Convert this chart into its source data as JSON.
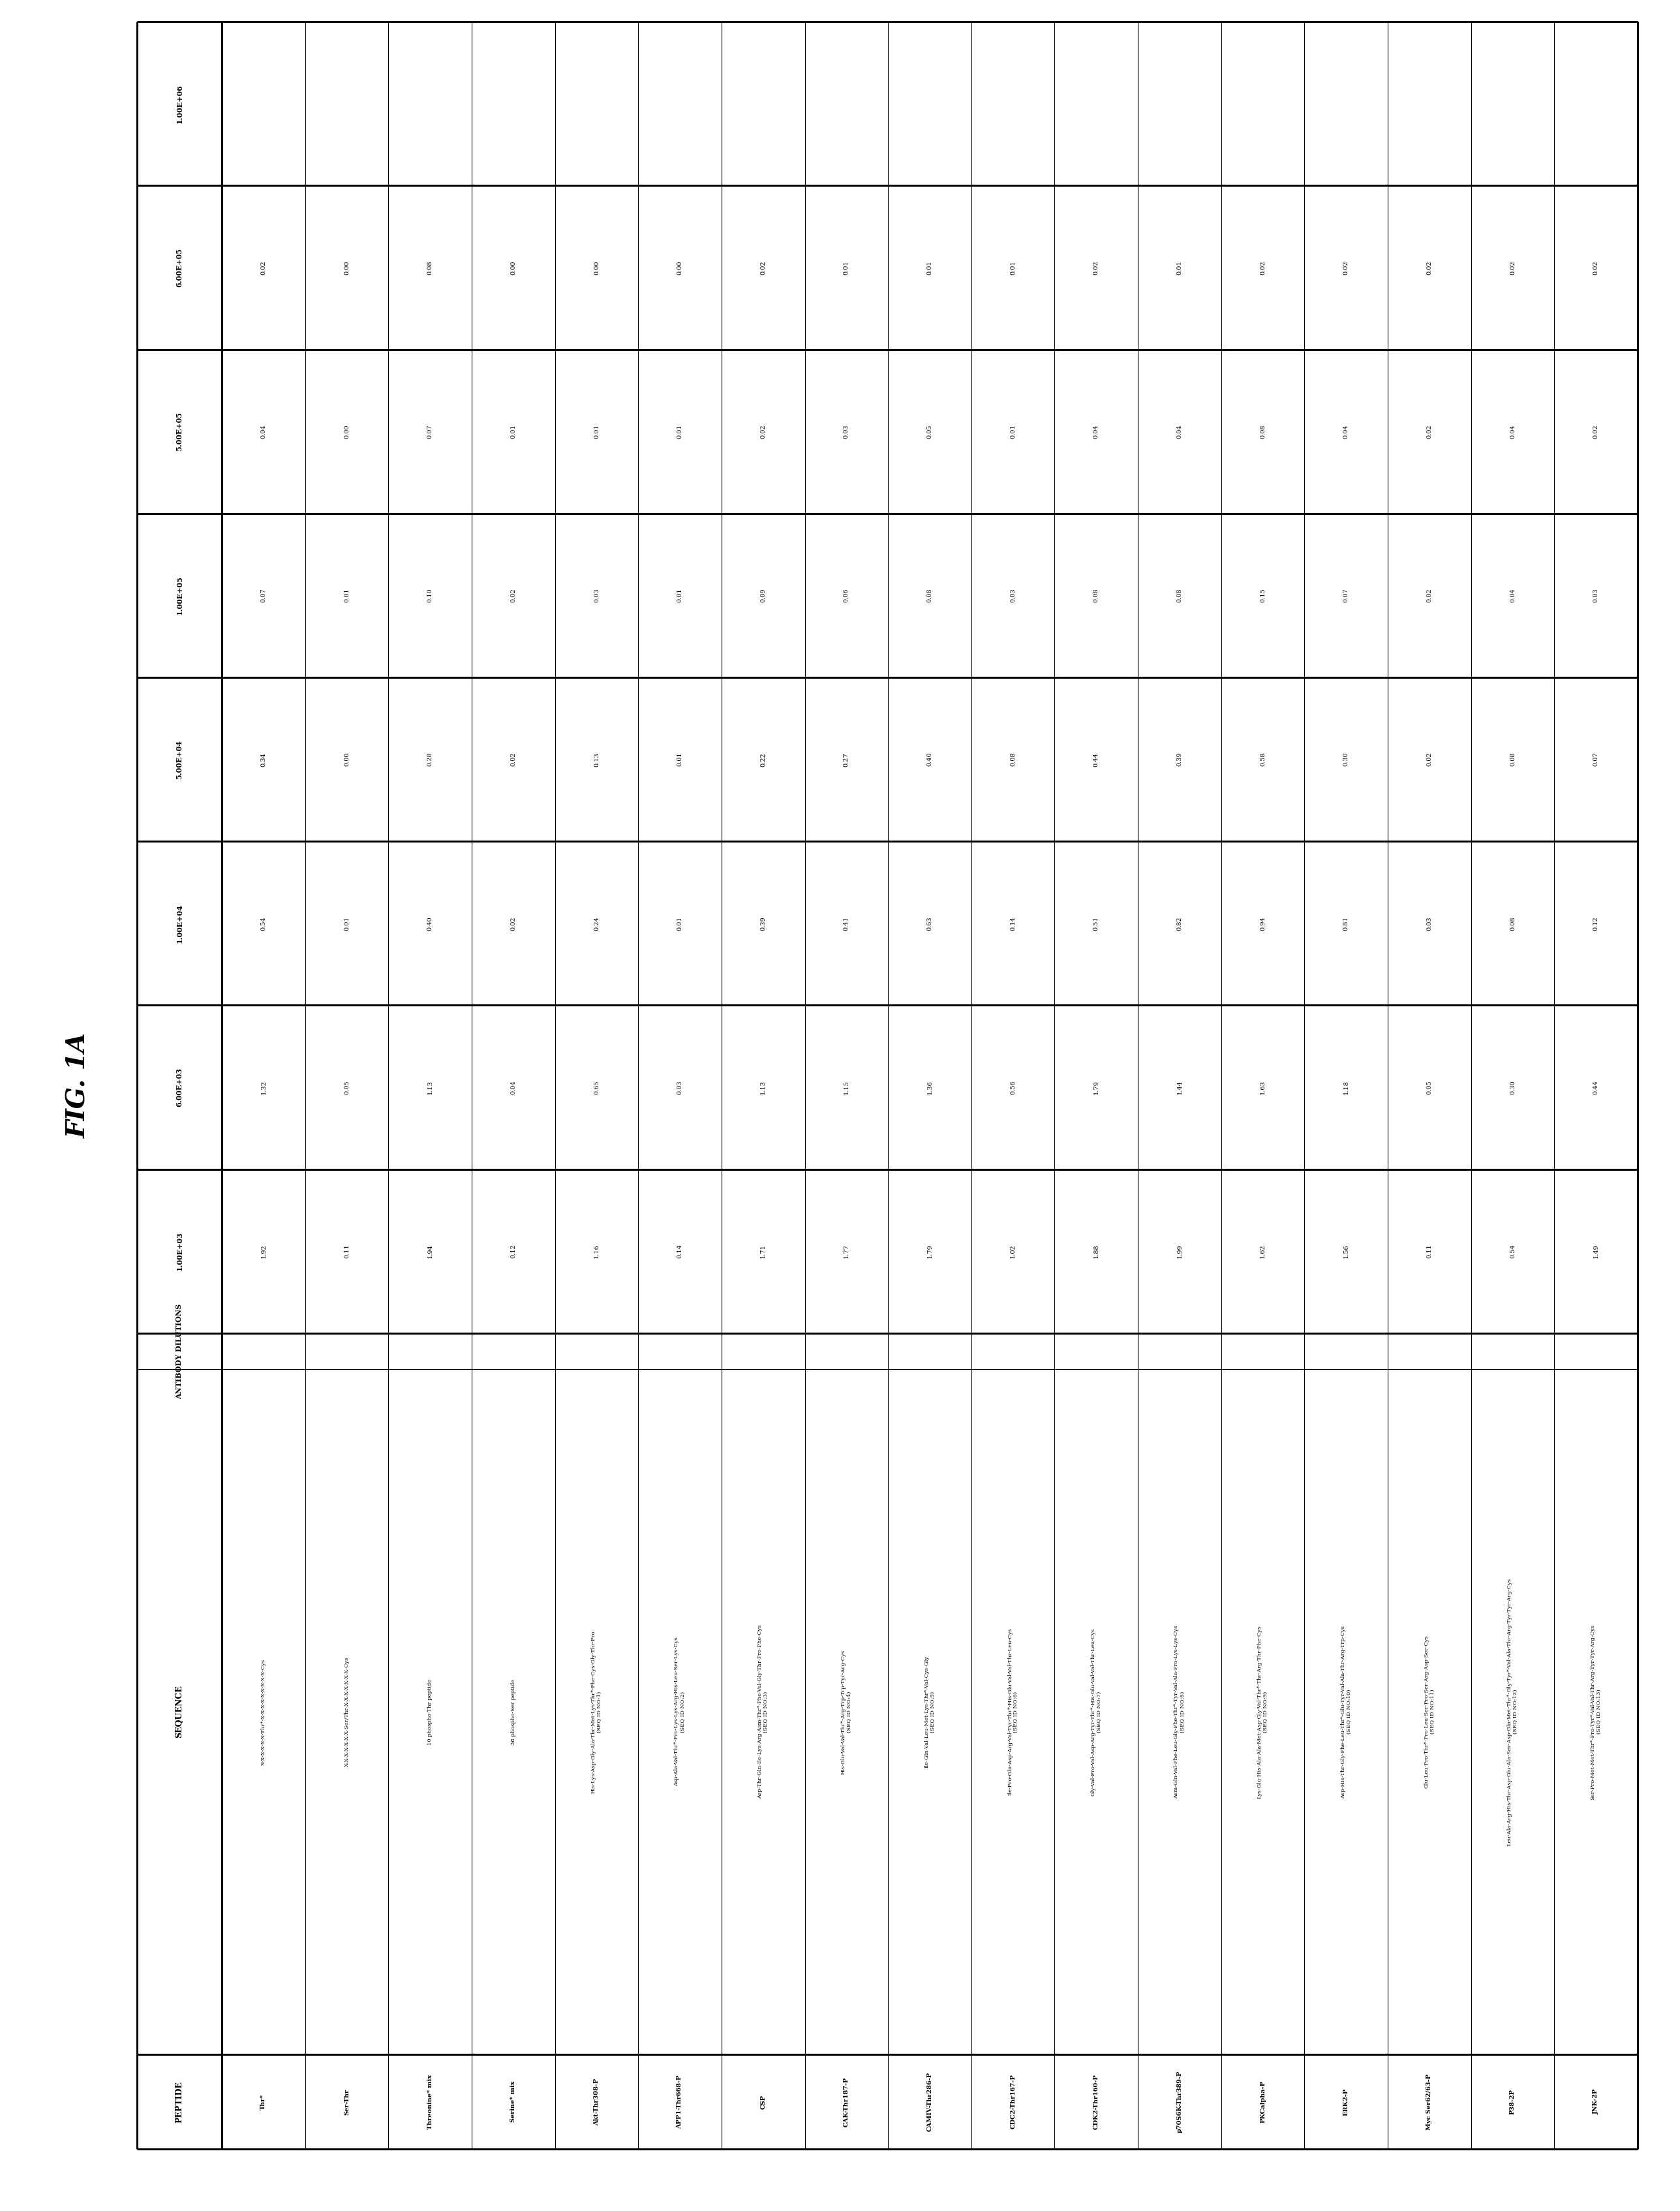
{
  "title": "FIG. 1A",
  "col_headers": [
    "PEPTIDE",
    "SEQUENCE",
    "1.00E+03",
    "6.00E+03",
    "1.00E+04",
    "5.00E+04",
    "1.00E+05",
    "5.00E+05",
    "6.00E+05",
    "1.00E+06"
  ],
  "antibody_dilutions_label": "ANTIBODY DILUTIONS",
  "rows": [
    {
      "peptide": "Thr*",
      "sequence": "X-X-X-X-X-X-Thr*-X-X-X-X-X-X-X-X-X-Cys",
      "values": [
        "1.92",
        "1.32",
        "0.54",
        "0.34",
        "0.07",
        "0.04",
        "0.02",
        ""
      ]
    },
    {
      "peptide": "Ser-Thr",
      "sequence": "X-X-X-X-X-X-X-Ser/Thr-X-X-X-X-X-X-X-Cys",
      "values": [
        "0.11",
        "0.05",
        "0.01",
        "0.00",
        "0.01",
        "0.00",
        "0.00",
        ""
      ]
    },
    {
      "peptide": "Threonine* mix",
      "sequence": "10 phospho-Thr peptide",
      "values": [
        "1.94",
        "1.13",
        "0.40",
        "0.28",
        "0.10",
        "0.07",
        "0.08",
        ""
      ]
    },
    {
      "peptide": "Serine* mix",
      "sequence": "38 phospho-Ser peptide",
      "values": [
        "0.12",
        "0.04",
        "0.02",
        "0.02",
        "0.02",
        "0.01",
        "0.00",
        ""
      ]
    },
    {
      "peptide": "Akt-Thr308-P",
      "sequence": "His-Lys-Asp-Gly-Ala-Thr-Met-Lys-Thr*-Phe-Cys-Gly-Thr-Pro\n(SEQ ID NO:1)",
      "values": [
        "1.16",
        "0.65",
        "0.24",
        "0.13",
        "0.03",
        "0.01",
        "0.00",
        ""
      ]
    },
    {
      "peptide": "APP1-Thr668-P",
      "sequence": "Asp-Ala-Val-Thr*-Pro-Lys-Lys-Arg-His-Leu-Ser-Lys-Cys\n(SEQ ID NO:2)",
      "values": [
        "0.14",
        "0.03",
        "0.01",
        "0.01",
        "0.01",
        "0.01",
        "0.00",
        ""
      ]
    },
    {
      "peptide": "CSP",
      "sequence": "Asp-Thr-Gln-Ile-Lys-Arg-Asm-Thr*-Phe-Val-Gly-Thr-Pro-Phe-Cys\n(SEQ ID NO:3)",
      "values": [
        "1.71",
        "1.13",
        "0.39",
        "0.22",
        "0.09",
        "0.02",
        "0.02",
        ""
      ]
    },
    {
      "peptide": "CAK-Thr187-P",
      "sequence": "His-Gln-Val-Val-Thr*-Arg-Trp-Trp-Tyr-Arg-Cys\n(SEQ ID NO:4)",
      "values": [
        "1.77",
        "1.15",
        "0.41",
        "0.27",
        "0.06",
        "0.03",
        "0.01",
        ""
      ]
    },
    {
      "peptide": "CAMIV-Thr286-P",
      "sequence": "Ile-Gln-Val-Leu-Met-Lys-Thr*-Val-Cys-Gly\n(SEQ ID NO:5)",
      "values": [
        "1.79",
        "1.36",
        "0.63",
        "0.40",
        "0.08",
        "0.05",
        "0.01",
        ""
      ]
    },
    {
      "peptide": "CDC2-Thr167-P",
      "sequence": "Ile-Pro-Gln-Asp-Arg-Val-Tyr-Thr*-His-Glu-Val-Val-Thr-Leu-Cys\n(SEQ ID NO:6)",
      "values": [
        "1.02",
        "0.56",
        "0.14",
        "0.08",
        "0.03",
        "0.01",
        "0.01",
        ""
      ]
    },
    {
      "peptide": "CDK2-Thr160-P",
      "sequence": "Gly-Val-Pro-Val-Asp-Arg-Tyr-Thr*-His-Glu-Val-Val-Thr-Leu-Cys\n(SEQ ID NO:7)",
      "values": [
        "1.88",
        "1.79",
        "0.51",
        "0.44",
        "0.08",
        "0.04",
        "0.02",
        ""
      ]
    },
    {
      "peptide": "p70S6K-Thr389-P",
      "sequence": "Asm-Gln-Val-Phe-Leu-Gly-Phe-Thr*-Tyr-Val-Ala-Pro-Lys-Lys-Cys\n(SEQ ID NO:8)",
      "values": [
        "1.99",
        "1.44",
        "0.82",
        "0.39",
        "0.08",
        "0.04",
        "0.01",
        ""
      ]
    },
    {
      "peptide": "PKCalpha-P",
      "sequence": "Lys-Glu-His-Ala-Ala-Met-Asp-Gly-Val-Thr*-Thr-Arg-Thr-Phe-Cys\n(SEQ ID NO:9)",
      "values": [
        "1.62",
        "1.63",
        "0.94",
        "0.58",
        "0.15",
        "0.08",
        "0.02",
        ""
      ]
    },
    {
      "peptide": "ERK2-P",
      "sequence": "Asp-His-Thr-Gly-Phe-Leu-Thr*-Glu-Tyr-Val-Ala-Thr-Arg-Trp-Cys\n(SEQ ID NO:10)",
      "values": [
        "1.56",
        "1.18",
        "0.81",
        "0.30",
        "0.07",
        "0.04",
        "0.02",
        ""
      ]
    },
    {
      "peptide": "Myc Ser62/63-P",
      "sequence": "Glu-Leu-Pro-Thr*-Pro-Leu-Ser-Pro-Ser-Arg-Asp-Ser-Cys\n(SEQ ID NO:11)",
      "values": [
        "0.11",
        "0.05",
        "0.03",
        "0.02",
        "0.02",
        "0.02",
        "0.02",
        ""
      ]
    },
    {
      "peptide": "P38-2P",
      "sequence": "Leu-Ala-Arg-His-Thr-Asp-Glu-Ala-Ser-Asp-Gln-Met-Thr*-Gly-Tyr*-Val-Ala-Thr-Arg-Tyr-Tyr-Arg-Cys\n(SEQ ID NO:12)",
      "values": [
        "0.54",
        "0.30",
        "0.08",
        "0.08",
        "0.04",
        "0.04",
        "0.02",
        ""
      ]
    },
    {
      "peptide": "JNK-2P",
      "sequence": "Ser-Pro-Met-Met-Thr*-Pro-Tyr*-Val-Val-Thr-Arg-Tyr-Tyr-Arg-Cys\n(SEQ ID NO:13)",
      "values": [
        "1.49",
        "0.44",
        "0.12",
        "0.07",
        "0.03",
        "0.02",
        "0.02",
        ""
      ]
    }
  ],
  "bg_color": "#ffffff",
  "line_color": "#000000",
  "font_size_title": 28,
  "font_size_header": 9,
  "font_size_peptide": 8,
  "font_size_sequence": 7.5,
  "font_size_value": 8
}
